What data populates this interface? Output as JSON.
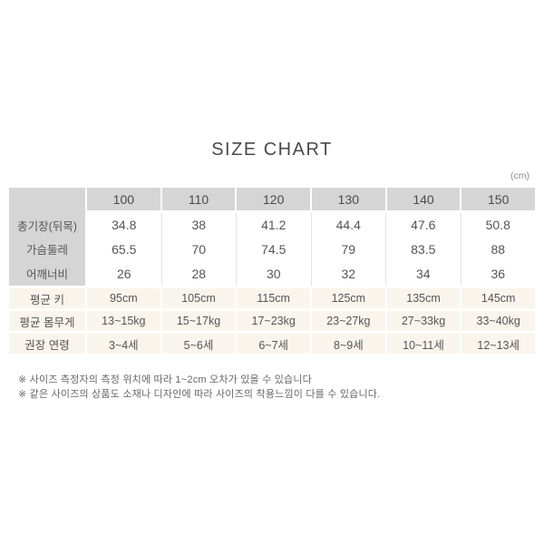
{
  "title": "SIZE CHART",
  "unit_label": "(cm)",
  "chart_data": {
    "type": "table",
    "title": "SIZE CHART",
    "unit": "cm",
    "columns": [
      "100",
      "110",
      "120",
      "130",
      "140",
      "150"
    ],
    "rows": [
      {
        "label": "총기장(뒤목)",
        "values": [
          "34.8",
          "38",
          "41.2",
          "44.4",
          "47.6",
          "50.8"
        ]
      },
      {
        "label": "가슴둘레",
        "values": [
          "65.5",
          "70",
          "74.5",
          "79",
          "83.5",
          "88"
        ]
      },
      {
        "label": "어깨너비",
        "values": [
          "26",
          "28",
          "30",
          "32",
          "34",
          "36"
        ]
      },
      {
        "label": "평균 키",
        "values": [
          "95cm",
          "105cm",
          "115cm",
          "125cm",
          "135cm",
          "145cm"
        ]
      },
      {
        "label": "평균 몸무게",
        "values": [
          "13~15kg",
          "15~17kg",
          "17~23kg",
          "23~27kg",
          "27~33kg",
          "33~40kg"
        ]
      },
      {
        "label": "권장 연령",
        "values": [
          "3~4세",
          "5~6세",
          "6~7세",
          "8~9세",
          "10~11세",
          "12~13세"
        ]
      }
    ],
    "layout": {
      "header_background": "#d5d5d5",
      "label_column_background": "#d5d5d5",
      "info_row_background": "#faf5ec",
      "grid_line_color": "#e2e2e2"
    }
  },
  "footnotes": [
    "※ 사이즈 측정자의 측정 위치에 따라 1~2cm 오차가 있을 수 있습니다",
    "※ 같은 사이즈의 상품도 소재나 디자인에 따라 사이즈의 착용느낌이 다를 수 있습니다."
  ],
  "colors": {
    "title_text": "#4a4a4a",
    "body_text": "#555555",
    "footnote_text": "#666666",
    "unit_text": "#888888",
    "header_bg": "#d5d5d5",
    "info_bg": "#faf5ec",
    "separator": "#e2e2e2"
  }
}
